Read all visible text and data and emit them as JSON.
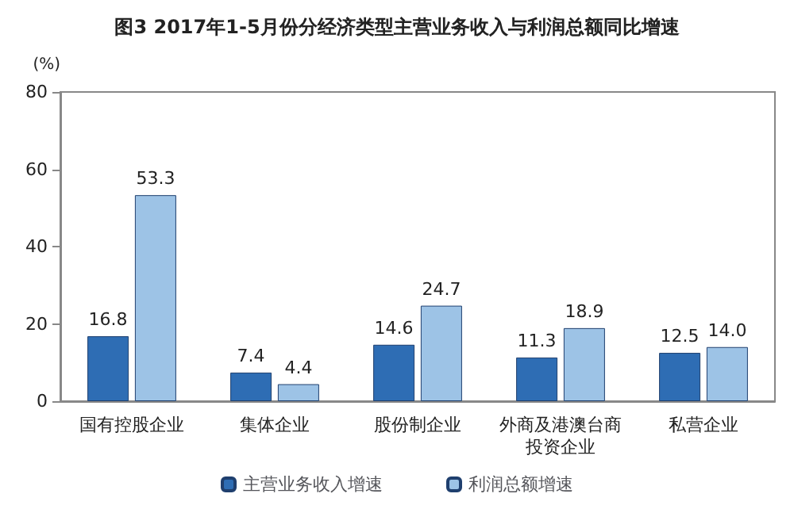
{
  "chart_data": {
    "type": "bar",
    "title": "图3 2017年1-5月份分经济类型主营业务收入与利润总额同比增速",
    "ylabel": "(%)",
    "categories": [
      "国有控股企业",
      "集体企业",
      "股份制企业",
      "外商及港澳台商投资企业",
      "私营企业"
    ],
    "series": [
      {
        "name": "主营业务收入增速",
        "color": "#2e6db4",
        "values": [
          16.8,
          7.4,
          14.6,
          11.3,
          12.5
        ],
        "value_labels": [
          "16.8",
          "7.4",
          "14.6",
          "11.3",
          "12.5"
        ]
      },
      {
        "name": "利润总额增速",
        "color": "#9dc3e6",
        "values": [
          53.3,
          4.4,
          24.7,
          18.9,
          14.0
        ],
        "value_labels": [
          "53.3",
          "4.4",
          "24.7",
          "18.9",
          "14.0"
        ]
      }
    ],
    "ylim": [
      0,
      80
    ],
    "yticks": [
      0,
      20,
      40,
      60,
      80
    ],
    "grid": false,
    "legend": "bottom"
  }
}
